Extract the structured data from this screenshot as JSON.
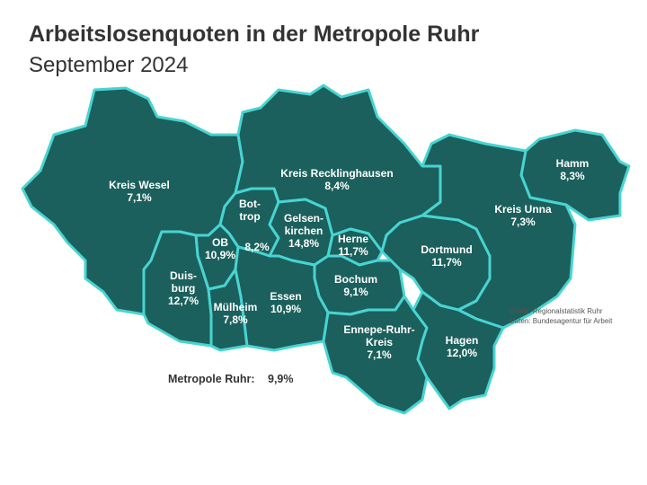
{
  "header": {
    "title": "Arbeitslosenquoten in der Metropole Ruhr",
    "subtitle": "September 2024"
  },
  "regions": [
    {
      "name": [
        "Kreis Wesel"
      ],
      "rate": "7,1%"
    },
    {
      "name": [
        "Kreis Recklinghausen"
      ],
      "rate": "8,4%"
    },
    {
      "name": [
        "Hamm"
      ],
      "rate": "8,3%"
    },
    {
      "name": [
        "Kreis Unna"
      ],
      "rate": "7,3%"
    },
    {
      "name": [
        "Dortmund"
      ],
      "rate": "11,7%"
    },
    {
      "name": [
        "Bot-",
        "trop"
      ],
      "rate": "8,2%"
    },
    {
      "name": [
        "Gelsen-",
        "kirchen"
      ],
      "rate": "14,8%"
    },
    {
      "name": [
        "Herne"
      ],
      "rate": "11,7%"
    },
    {
      "name": [
        "Bochum"
      ],
      "rate": "9,1%"
    },
    {
      "name": [
        "OB"
      ],
      "rate": "10,9%"
    },
    {
      "name": [
        "Duis-",
        "burg"
      ],
      "rate": "12,7%"
    },
    {
      "name": [
        "Mülheim"
      ],
      "rate": "7,8%"
    },
    {
      "name": [
        "Essen"
      ],
      "rate": "10,9%"
    },
    {
      "name": [
        "Ennepe-Ruhr-",
        "Kreis"
      ],
      "rate": "7,1%"
    },
    {
      "name": [
        "Hagen"
      ],
      "rate": "12,0%"
    }
  ],
  "total": {
    "label": "Metropole Ruhr:",
    "rate": "9,9%"
  },
  "source": [
    "Grafik: Regionalstatistik Ruhr",
    "Daten: Bundesagentur für Arbeit"
  ]
}
